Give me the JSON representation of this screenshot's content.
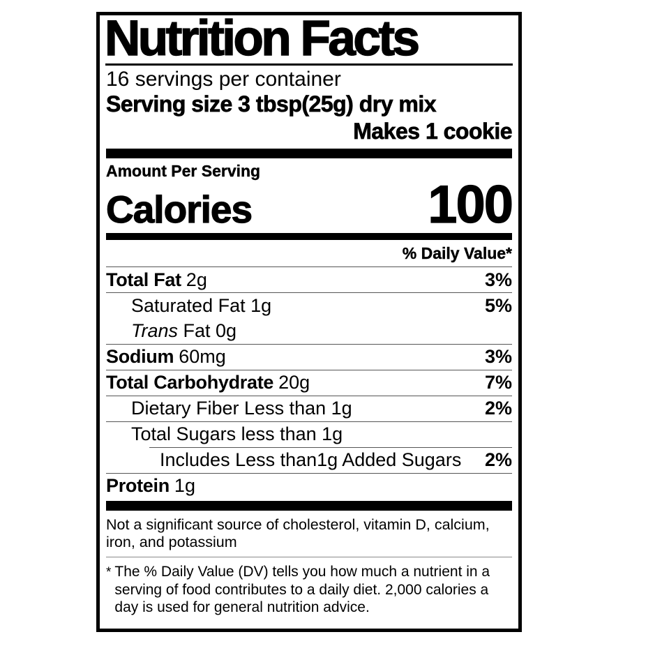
{
  "label": {
    "title": "Nutrition Facts",
    "servings_per_container": "16 servings per container",
    "serving_size": {
      "label": "Serving size",
      "value": "3 tbsp(25g) dry mix"
    },
    "serving_note": "Makes 1 cookie",
    "amount_per_serving": "Amount Per Serving",
    "calories": {
      "label": "Calories",
      "value": "100"
    },
    "daily_value_header": "% Daily Value*",
    "rows": {
      "total_fat": {
        "name": "Total Fat",
        "amount": "2g",
        "dv": "3%"
      },
      "saturated_fat": {
        "name": "Saturated Fat 1g",
        "dv": "5%"
      },
      "trans_fat": {
        "name_italic": "Trans",
        "name_rest": "Fat 0g"
      },
      "sodium": {
        "name": "Sodium",
        "amount": "60mg",
        "dv": "3%"
      },
      "total_carbohydrate": {
        "name": "Total Carbohydrate",
        "amount": "20g",
        "dv": "7%"
      },
      "dietary_fiber": {
        "name": "Dietary Fiber Less than 1g",
        "dv": "2%"
      },
      "total_sugars": {
        "name": "Total Sugars less than 1g"
      },
      "added_sugars": {
        "name": "Includes Less than1g Added Sugars",
        "dv": "2%"
      },
      "protein": {
        "name": "Protein",
        "amount": "1g"
      }
    },
    "not_significant_note": "Not a significant source of cholesterol, vitamin D, calcium, iron, and potassium",
    "footnote": {
      "marker": "*",
      "text": "The % Daily Value (DV) tells you how much a nutrient in a serving of food contributes to a daily diet. 2,000 calories a day is used for general nutrition advice."
    },
    "colors": {
      "text": "#000000",
      "background": "#ffffff",
      "thick_bar": "#000000",
      "hairline": "#555555"
    }
  }
}
